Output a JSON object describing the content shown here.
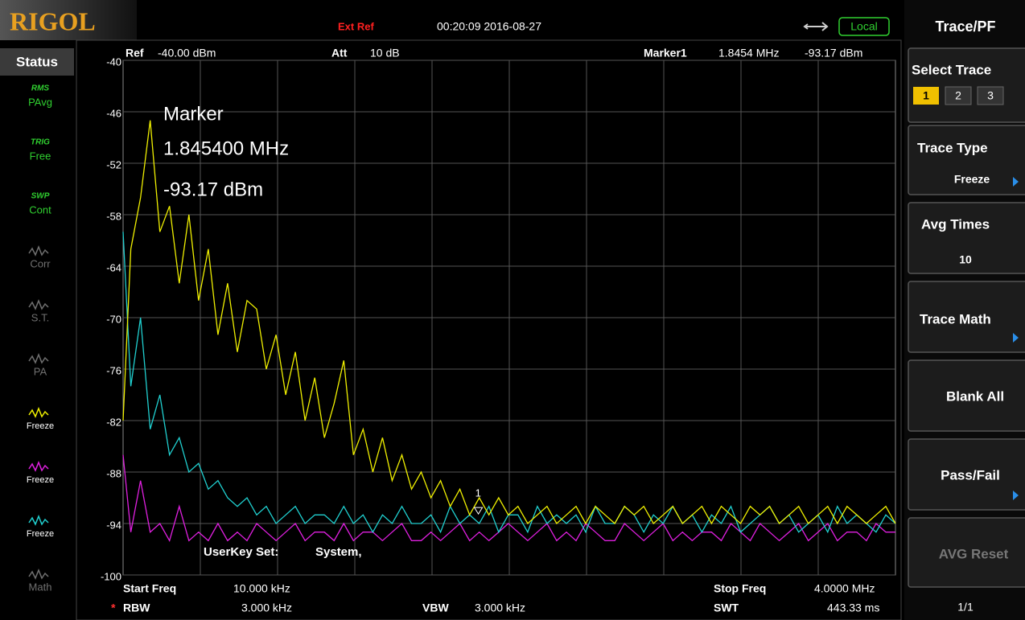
{
  "header": {
    "logo": "RIGOL",
    "ext_ref": "Ext Ref",
    "datetime": "00:20:09 2016-08-27",
    "local": "Local"
  },
  "status": {
    "title": "Status",
    "items": [
      {
        "icon": "RMS",
        "label": "PAvg",
        "color": "#30d030"
      },
      {
        "icon": "TRIG",
        "label": "Free",
        "color": "#30d030"
      },
      {
        "icon": "SWP",
        "label": "Cont",
        "color": "#30d030"
      },
      {
        "label": "Corr",
        "color": "#707070"
      },
      {
        "label": "S.T.",
        "color": "#707070"
      },
      {
        "label": "PA",
        "color": "#707070"
      },
      {
        "label": "Freeze",
        "color": "#f0f000"
      },
      {
        "label": "Freeze",
        "color": "#e020e0"
      },
      {
        "label": "Freeze",
        "color": "#20d0d0"
      },
      {
        "label": "Math",
        "color": "#707070"
      }
    ]
  },
  "chart_data": {
    "type": "line",
    "ref_label": "Ref",
    "ref": "-40.00 dBm",
    "att_label": "Att",
    "att": "10 dB",
    "marker_label": "Marker1",
    "marker": {
      "name": "1",
      "x": {
        "value": 1.8454,
        "label": "1.8454 MHz"
      },
      "level": {
        "value": -93.17,
        "label": "-93.17 dBm"
      }
    },
    "annotation": [
      "Marker",
      "1.845400 MHz",
      "-93.17 dBm"
    ],
    "userkey": {
      "label": "UserKey Set:",
      "value": "System,"
    },
    "xlim": [
      0.01,
      4
    ],
    "ylim": [
      -100,
      -40
    ],
    "yticks": [
      -40,
      -46,
      -52,
      -58,
      -64,
      -70,
      -76,
      -82,
      -88,
      -94,
      -100
    ],
    "grid": true,
    "x": [
      0.01,
      0.05,
      0.1,
      0.15,
      0.2,
      0.25,
      0.3,
      0.35,
      0.4,
      0.45,
      0.5,
      0.55,
      0.6,
      0.65,
      0.7,
      0.75,
      0.8,
      0.85,
      0.9,
      0.95,
      1,
      1.05,
      1.1,
      1.15,
      1.2,
      1.25,
      1.3,
      1.35,
      1.4,
      1.45,
      1.5,
      1.55,
      1.6,
      1.65,
      1.7,
      1.75,
      1.8,
      1.85,
      1.9,
      1.95,
      2,
      2.05,
      2.1,
      2.15,
      2.2,
      2.25,
      2.3,
      2.35,
      2.4,
      2.45,
      2.5,
      2.55,
      2.6,
      2.65,
      2.7,
      2.75,
      2.8,
      2.85,
      2.9,
      2.95,
      3,
      3.05,
      3.1,
      3.15,
      3.2,
      3.25,
      3.3,
      3.35,
      3.4,
      3.45,
      3.5,
      3.55,
      3.6,
      3.65,
      3.7,
      3.75,
      3.8,
      3.85,
      3.9,
      3.95,
      4
    ],
    "series": [
      {
        "color": "#f0f000",
        "values": [
          -82,
          -62,
          -56,
          -47,
          -60,
          -57,
          -66,
          -58,
          -68,
          -62,
          -72,
          -66,
          -74,
          -68,
          -69,
          -76,
          -72,
          -79,
          -74,
          -82,
          -77,
          -84,
          -80,
          -75,
          -86,
          -83,
          -88,
          -84,
          -89,
          -86,
          -90,
          -88,
          -91,
          -89,
          -92,
          -90,
          -93,
          -91,
          -93,
          -91,
          -93,
          -92,
          -94,
          -93,
          -92,
          -94,
          -93,
          -92,
          -94,
          -92,
          -93,
          -94,
          -92,
          -93,
          -92,
          -94,
          -93,
          -92,
          -94,
          -93,
          -92,
          -94,
          -92,
          -93,
          -94,
          -92,
          -93,
          -92,
          -94,
          -93,
          -92,
          -94,
          -93,
          -92,
          -94,
          -92,
          -93,
          -94,
          -93,
          -92,
          -94
        ]
      },
      {
        "color": "#20d0d0",
        "values": [
          -60,
          -78,
          -70,
          -83,
          -79,
          -86,
          -84,
          -88,
          -87,
          -90,
          -89,
          -91,
          -92,
          -91,
          -93,
          -92,
          -94,
          -93,
          -92,
          -94,
          -93,
          -93,
          -94,
          -92,
          -94,
          -93,
          -95,
          -93,
          -94,
          -92,
          -94,
          -94,
          -93,
          -95,
          -92,
          -94,
          -93,
          -94,
          -92,
          -95,
          -93,
          -93,
          -95,
          -92,
          -94,
          -93,
          -94,
          -93,
          -95,
          -92,
          -94,
          -94,
          -92,
          -93,
          -95,
          -93,
          -94,
          -92,
          -94,
          -93,
          -95,
          -93,
          -94,
          -92,
          -95,
          -94,
          -93,
          -92,
          -94,
          -93,
          -95,
          -94,
          -93,
          -95,
          -92,
          -94,
          -93,
          -94,
          -95,
          -93,
          -94
        ]
      },
      {
        "color": "#e020e0",
        "values": [
          -86,
          -95,
          -89,
          -95,
          -94,
          -96,
          -92,
          -96,
          -95,
          -96,
          -94,
          -96,
          -95,
          -96,
          -94,
          -95,
          -96,
          -95,
          -94,
          -96,
          -95,
          -95,
          -96,
          -94,
          -96,
          -95,
          -95,
          -96,
          -95,
          -94,
          -96,
          -96,
          -95,
          -96,
          -95,
          -94,
          -96,
          -95,
          -96,
          -95,
          -94,
          -95,
          -96,
          -95,
          -94,
          -96,
          -95,
          -96,
          -94,
          -95,
          -96,
          -96,
          -94,
          -95,
          -96,
          -95,
          -94,
          -96,
          -95,
          -96,
          -95,
          -95,
          -96,
          -94,
          -95,
          -96,
          -94,
          -95,
          -96,
          -95,
          -94,
          -96,
          -95,
          -94,
          -96,
          -95,
          -95,
          -96,
          -94,
          -95,
          -95
        ]
      }
    ]
  },
  "footer": {
    "start_label": "Start Freq",
    "start": "10.000 kHz",
    "stop_label": "Stop Freq",
    "stop": "4.0000 MHz",
    "rbw_flag": "*",
    "rbw_label": "RBW",
    "rbw": "3.000 kHz",
    "vbw_label": "VBW",
    "vbw": "3.000 kHz",
    "swt_label": "SWT",
    "swt": "443.33 ms"
  },
  "menu": {
    "title": "Trace/PF",
    "select_trace": "Select Trace",
    "traces": [
      "1",
      "2",
      "3"
    ],
    "trace_type": "Trace Type",
    "trace_type_value": "Freeze",
    "avg_times": "Avg Times",
    "avg_times_value": "10",
    "trace_math": "Trace Math",
    "blank_all": "Blank All",
    "pass_fail": "Pass/Fail",
    "avg_reset": "AVG Reset",
    "page": "1/1"
  }
}
